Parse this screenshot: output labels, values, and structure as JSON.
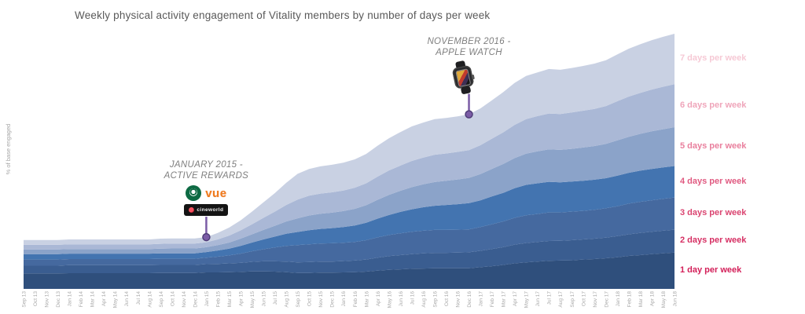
{
  "title": "Weekly physical activity engagement of Vitality members by number of days per week",
  "y_axis_label": "% of base engaged",
  "colors": {
    "title_text": "#595959",
    "annotation_text": "#7f7f7f",
    "axis_text": "#a9a9a9",
    "annotation_marker": "#7b5ca6",
    "annotation_marker_stroke": "#4f3d78"
  },
  "annotations": [
    {
      "id": "active-rewards",
      "title_line1": "JANUARY 2015 -",
      "title_line2": "ACTIVE REWARDS",
      "month": "Jan 15",
      "month_index": 16,
      "logos": {
        "starbucks": "starbucks-logo",
        "vue_label": "vue",
        "cineworld_label": "cineworld"
      }
    },
    {
      "id": "apple-watch",
      "title_line1": "NOVEMBER 2016 -",
      "title_line2": "APPLE WATCH",
      "month": "Dec 16",
      "month_index": 39,
      "logos": {
        "watch": "apple-watch"
      }
    }
  ],
  "chart_data": {
    "type": "area",
    "stacked": true,
    "title": "Weekly physical activity engagement of Vitality members by number of days per week",
    "xlabel": "",
    "ylabel": "% of base engaged",
    "grid": false,
    "y_axis_ticks_visible": false,
    "legend_position": "right",
    "ylim": [
      0,
      100
    ],
    "x": [
      "Sep 13",
      "Oct 13",
      "Nov 13",
      "Dec 13",
      "Jan 14",
      "Feb 14",
      "Mar 14",
      "Apr 14",
      "May 14",
      "Jun 14",
      "Jul 14",
      "Aug 14",
      "Sep 14",
      "Oct 14",
      "Nov 14",
      "Dec 14",
      "Jan 15",
      "Feb 15",
      "Mar 15",
      "Apr 15",
      "May 15",
      "Jun 15",
      "Jul 15",
      "Aug 15",
      "Sep 15",
      "Oct 15",
      "Nov 15",
      "Dec 15",
      "Jan 16",
      "Feb 16",
      "Mar 16",
      "Apr 16",
      "May 16",
      "Jun 16",
      "Jul 16",
      "Aug 16",
      "Sep 16",
      "Oct 16",
      "Nov 16",
      "Dec 16",
      "Jan 17",
      "Feb 17",
      "Mar 17",
      "Apr 17",
      "May 17",
      "Jun 17",
      "Jul 17",
      "Aug 17",
      "Sep 17",
      "Oct 17",
      "Nov 17",
      "Dec 17",
      "Jan 18",
      "Feb 18",
      "Mar 18",
      "Apr 18",
      "May 18",
      "Jun 18"
    ],
    "series": [
      {
        "name": "1 day per week",
        "color": "#2f4f7c",
        "label_color": "#d31e58",
        "values": [
          6.0,
          6.0,
          6.0,
          6.0,
          6.1,
          6.1,
          6.1,
          6.1,
          6.1,
          6.1,
          6.1,
          6.1,
          6.2,
          6.2,
          6.2,
          6.2,
          6.4,
          6.4,
          6.5,
          6.6,
          6.8,
          6.8,
          6.7,
          6.5,
          6.2,
          6.2,
          6.3,
          6.3,
          6.4,
          6.5,
          6.7,
          7.1,
          7.4,
          7.6,
          7.8,
          7.9,
          8.0,
          8.0,
          8.0,
          8.0,
          8.4,
          8.8,
          9.3,
          9.9,
          10.3,
          10.6,
          10.9,
          11.0,
          11.1,
          11.4,
          11.6,
          11.9,
          12.3,
          12.8,
          13.1,
          13.5,
          13.8,
          14.1
        ]
      },
      {
        "name": "2 days per week",
        "color": "#3a5d90",
        "label_color": "#d62f63",
        "values": [
          3.0,
          3.0,
          3.0,
          3.0,
          3.1,
          3.1,
          3.1,
          3.1,
          3.1,
          3.1,
          3.1,
          3.1,
          3.1,
          3.1,
          3.1,
          3.1,
          3.2,
          3.3,
          3.4,
          3.5,
          3.7,
          3.9,
          4.0,
          4.1,
          4.1,
          4.2,
          4.3,
          4.3,
          4.4,
          4.5,
          4.7,
          5.0,
          5.3,
          5.5,
          5.7,
          5.9,
          6.0,
          6.0,
          6.1,
          6.2,
          6.4,
          6.7,
          6.9,
          7.3,
          7.5,
          7.6,
          7.7,
          7.7,
          7.8,
          7.8,
          7.9,
          8.0,
          8.2,
          8.4,
          8.6,
          8.7,
          8.8,
          8.9
        ]
      },
      {
        "name": "3 days per week",
        "color": "#45699f",
        "label_color": "#da4470",
        "values": [
          2.4,
          2.4,
          2.4,
          2.4,
          2.4,
          2.4,
          2.4,
          2.4,
          2.4,
          2.4,
          2.4,
          2.4,
          2.4,
          2.4,
          2.4,
          2.4,
          2.5,
          2.8,
          3.1,
          3.6,
          4.1,
          4.7,
          5.4,
          6.1,
          6.7,
          6.9,
          7.0,
          7.1,
          7.1,
          7.2,
          7.5,
          7.9,
          8.2,
          8.5,
          8.7,
          8.8,
          8.9,
          8.9,
          8.9,
          8.9,
          9.2,
          9.6,
          10.0,
          10.4,
          10.8,
          10.9,
          11.1,
          11.0,
          11.1,
          11.1,
          11.2,
          11.4,
          11.6,
          11.9,
          12.1,
          12.2,
          12.4,
          12.5
        ]
      },
      {
        "name": "4 days per week",
        "color": "#4374b0",
        "label_color": "#e05a81",
        "values": [
          2.1,
          2.1,
          2.1,
          2.1,
          2.1,
          2.1,
          2.1,
          2.1,
          2.1,
          2.1,
          2.1,
          2.1,
          2.1,
          2.1,
          2.1,
          2.1,
          2.2,
          2.4,
          2.6,
          3.0,
          3.4,
          3.8,
          4.2,
          4.7,
          5.1,
          5.5,
          5.7,
          5.9,
          6.1,
          6.4,
          6.8,
          7.3,
          7.8,
          8.3,
          8.7,
          9.1,
          9.4,
          9.7,
          9.9,
          10.2,
          10.4,
          10.8,
          11.1,
          11.5,
          11.8,
          11.9,
          11.9,
          11.7,
          11.7,
          11.7,
          11.7,
          11.7,
          11.9,
          12.0,
          12.1,
          12.2,
          12.2,
          12.2
        ]
      },
      {
        "name": "5 days per week",
        "color": "#8ba3c9",
        "label_color": "#e97f9d",
        "values": [
          1.8,
          1.8,
          1.8,
          1.8,
          1.8,
          1.8,
          1.8,
          1.8,
          1.8,
          1.8,
          1.8,
          1.8,
          1.8,
          1.9,
          1.9,
          1.9,
          1.9,
          2.1,
          2.4,
          2.8,
          3.2,
          3.7,
          4.2,
          4.8,
          5.3,
          5.7,
          5.9,
          6.0,
          6.2,
          6.5,
          6.8,
          7.3,
          7.8,
          8.2,
          8.6,
          8.9,
          9.2,
          9.4,
          9.6,
          9.8,
          10.2,
          10.7,
          11.2,
          11.7,
          12.1,
          12.4,
          12.6,
          12.6,
          12.7,
          12.9,
          13.1,
          13.3,
          13.7,
          14.0,
          14.3,
          14.6,
          14.8,
          15.1
        ]
      },
      {
        "name": "6 days per week",
        "color": "#aab8d6",
        "label_color": "#efa5ba",
        "values": [
          1.8,
          1.8,
          1.8,
          1.8,
          1.8,
          1.8,
          1.8,
          1.8,
          1.8,
          1.8,
          1.8,
          1.8,
          1.9,
          1.9,
          1.9,
          1.9,
          1.9,
          2.2,
          2.7,
          3.2,
          3.9,
          4.7,
          5.5,
          6.4,
          7.3,
          7.7,
          7.8,
          7.9,
          8.0,
          8.2,
          8.5,
          9.0,
          9.5,
          9.8,
          10.2,
          10.4,
          10.6,
          10.6,
          10.7,
          10.8,
          11.2,
          11.7,
          12.3,
          12.9,
          13.4,
          13.7,
          13.9,
          13.9,
          14.1,
          14.3,
          14.4,
          14.7,
          15.2,
          15.6,
          15.9,
          16.2,
          16.5,
          16.7
        ]
      },
      {
        "name": "7 days per week",
        "color": "#c9d1e3",
        "label_color": "#f6c9d5",
        "values": [
          1.9,
          1.9,
          1.9,
          1.9,
          1.9,
          1.9,
          1.9,
          1.9,
          1.9,
          1.9,
          1.9,
          1.9,
          2.0,
          2.0,
          2.0,
          2.0,
          2.0,
          2.5,
          3.1,
          3.9,
          4.9,
          6.0,
          7.2,
          8.6,
          10.0,
          10.4,
          10.6,
          10.7,
          10.8,
          11.0,
          11.4,
          12.0,
          12.5,
          13.0,
          13.4,
          13.6,
          13.8,
          13.8,
          13.8,
          13.9,
          14.3,
          14.9,
          15.6,
          16.3,
          16.8,
          17.0,
          17.3,
          17.2,
          17.3,
          17.4,
          17.6,
          17.8,
          18.2,
          18.6,
          18.9,
          19.2,
          19.4,
          19.6
        ]
      }
    ]
  }
}
